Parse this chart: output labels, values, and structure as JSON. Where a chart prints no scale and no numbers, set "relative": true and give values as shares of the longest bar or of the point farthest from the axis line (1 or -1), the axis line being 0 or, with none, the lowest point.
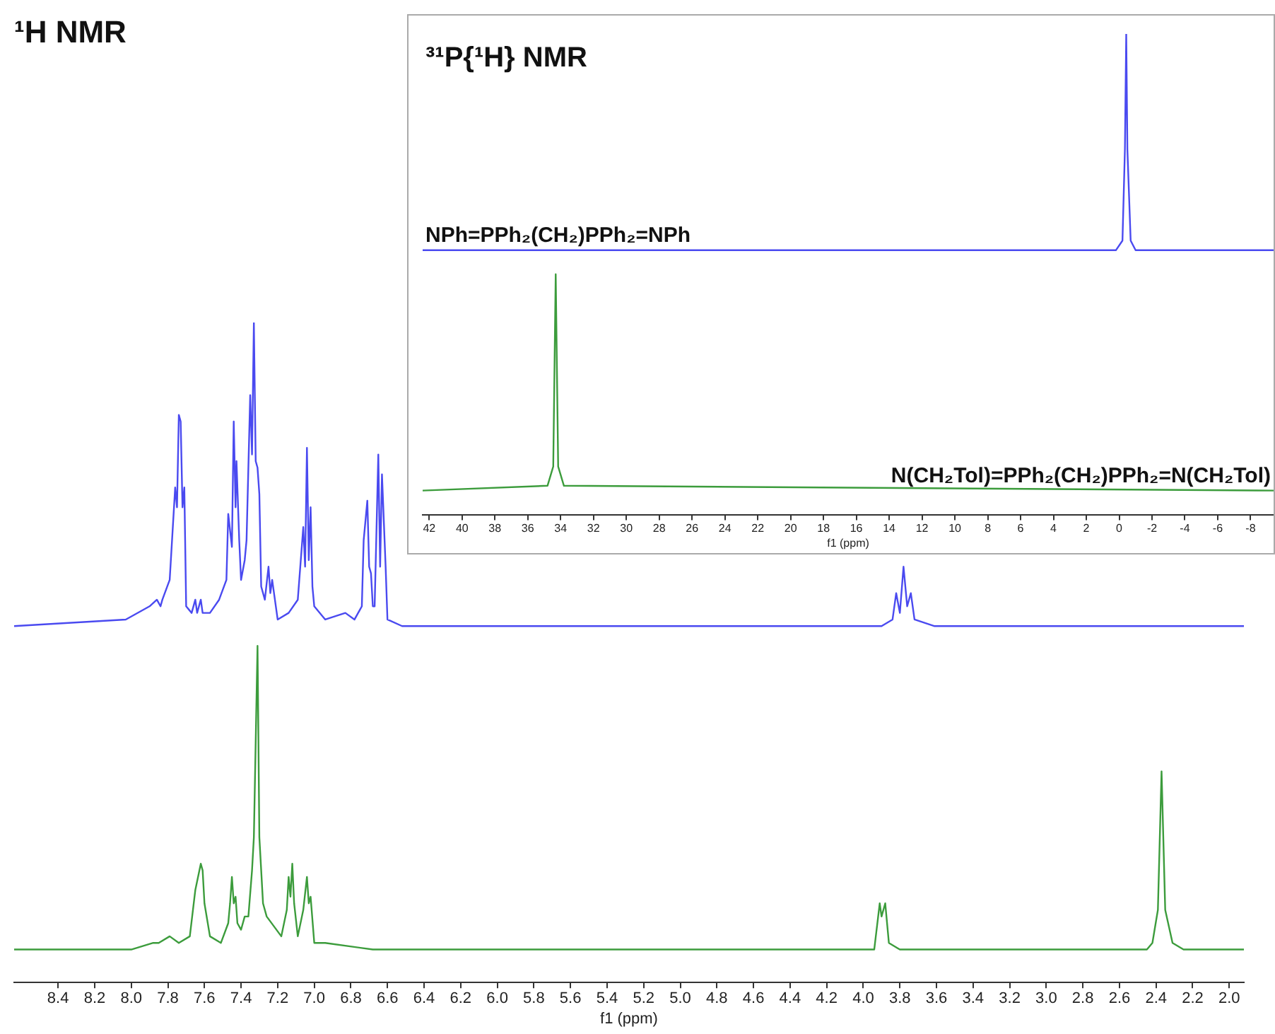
{
  "chart_data": [
    {
      "type": "line",
      "title": "¹H NMR",
      "xlabel": "f1 (ppm)",
      "relative": true,
      "legend": false,
      "grid": false,
      "marker": "none",
      "line_style": "solid",
      "xlim": [
        8.64,
        1.92
      ],
      "xticks": [
        8.4,
        8.2,
        {
          "value": 8,
          "label": "8.0"
        },
        7.8,
        7.6,
        7.4,
        7.2,
        {
          "value": 7,
          "label": "7.0"
        },
        6.8,
        6.6,
        6.4,
        6.2,
        {
          "value": 6,
          "label": "6.0"
        },
        5.8,
        5.6,
        5.4,
        5.2,
        {
          "value": 5,
          "label": "5.0"
        },
        4.8,
        4.6,
        4.4,
        4.2,
        {
          "value": 4,
          "label": "4.0"
        },
        3.8,
        3.6,
        3.4,
        3.2,
        {
          "value": 3,
          "label": "3.0"
        },
        2.8,
        2.6,
        2.4,
        2.2,
        {
          "value": 2,
          "label": "2.0"
        }
      ],
      "series": [
        {
          "color": "#4a4af0",
          "x": [
            8.64,
            8.03,
            7.9,
            7.86,
            7.84,
            7.83,
            7.79,
            7.76,
            7.75,
            7.74,
            7.73,
            7.72,
            7.71,
            7.7,
            7.67,
            7.65,
            7.64,
            7.62,
            7.61,
            7.57,
            7.52,
            7.48,
            7.47,
            7.45,
            7.44,
            7.43,
            7.425,
            7.41,
            7.4,
            7.38,
            7.37,
            7.35,
            7.34,
            7.33,
            7.32,
            7.31,
            7.3,
            7.29,
            7.27,
            7.25,
            7.24,
            7.23,
            7.2,
            7.14,
            7.09,
            7.06,
            7.05,
            7.04,
            7.03,
            7.02,
            7.01,
            7.0,
            6.94,
            6.83,
            6.78,
            6.74,
            6.73,
            6.71,
            6.7,
            6.69,
            6.68,
            6.67,
            6.65,
            6.64,
            6.63,
            6.61,
            6.6,
            6.52,
            3.9,
            3.84,
            3.82,
            3.8,
            3.78,
            3.76,
            3.74,
            3.72,
            3.61,
            1.92
          ],
          "values": [
            0.54,
            0.55,
            0.57,
            0.58,
            0.57,
            0.58,
            0.61,
            0.75,
            0.72,
            0.86,
            0.85,
            0.72,
            0.75,
            0.57,
            0.56,
            0.58,
            0.56,
            0.58,
            0.56,
            0.56,
            0.58,
            0.61,
            0.71,
            0.66,
            0.85,
            0.72,
            0.79,
            0.67,
            0.61,
            0.64,
            0.67,
            0.89,
            0.8,
            1.0,
            0.79,
            0.78,
            0.74,
            0.6,
            0.58,
            0.63,
            0.59,
            0.61,
            0.55,
            0.56,
            0.58,
            0.69,
            0.63,
            0.81,
            0.64,
            0.72,
            0.6,
            0.57,
            0.55,
            0.56,
            0.55,
            0.57,
            0.67,
            0.73,
            0.63,
            0.62,
            0.57,
            0.57,
            0.8,
            0.63,
            0.77,
            0.63,
            0.55,
            0.54,
            0.54,
            0.55,
            0.59,
            0.56,
            0.63,
            0.57,
            0.59,
            0.55,
            0.54,
            0.54
          ]
        },
        {
          "color": "#3c9c3c",
          "x": [
            8.64,
            8.0,
            7.88,
            7.85,
            7.79,
            7.74,
            7.68,
            7.65,
            7.62,
            7.61,
            7.6,
            7.57,
            7.51,
            7.47,
            7.46,
            7.45,
            7.44,
            7.43,
            7.42,
            7.4,
            7.38,
            7.36,
            7.34,
            7.33,
            7.31,
            7.3,
            7.28,
            7.26,
            7.18,
            7.15,
            7.14,
            7.13,
            7.12,
            7.11,
            7.09,
            7.06,
            7.04,
            7.03,
            7.02,
            7.0,
            6.94,
            6.68,
            3.94,
            3.91,
            3.9,
            3.88,
            3.86,
            3.8,
            2.45,
            2.42,
            2.39,
            2.37,
            2.35,
            2.31,
            2.25,
            1.92
          ],
          "values": [
            0.05,
            0.05,
            0.06,
            0.06,
            0.07,
            0.06,
            0.07,
            0.14,
            0.18,
            0.17,
            0.12,
            0.07,
            0.06,
            0.09,
            0.12,
            0.16,
            0.12,
            0.13,
            0.09,
            0.08,
            0.1,
            0.1,
            0.17,
            0.22,
            0.51,
            0.22,
            0.12,
            0.1,
            0.07,
            0.11,
            0.16,
            0.13,
            0.18,
            0.12,
            0.07,
            0.11,
            0.16,
            0.12,
            0.13,
            0.06,
            0.06,
            0.05,
            0.05,
            0.12,
            0.1,
            0.12,
            0.06,
            0.05,
            0.05,
            0.06,
            0.11,
            0.32,
            0.11,
            0.06,
            0.05,
            0.05
          ]
        }
      ]
    },
    {
      "type": "line",
      "title": "³¹P{¹H} NMR",
      "xlabel": "f1 (ppm)",
      "relative": true,
      "legend": false,
      "grid": false,
      "marker": "none",
      "line_style": "solid",
      "xlim": [
        42.4,
        -9.4
      ],
      "xticks": [
        42,
        40,
        38,
        36,
        34,
        32,
        30,
        28,
        26,
        24,
        22,
        20,
        18,
        16,
        14,
        12,
        10,
        8,
        6,
        4,
        2,
        0,
        -2,
        -4,
        -6,
        -8
      ],
      "series": [
        {
          "name": "NPh=PPh₂(CH₂)PPh₂=NPh",
          "color": "#4a4af0",
          "x": [
            42.4,
            0.2,
            -0.2,
            -0.35,
            -0.43,
            -0.5,
            -0.7,
            -1.0,
            -9.4
          ],
          "values": [
            0.55,
            0.55,
            0.57,
            0.76,
            1.0,
            0.76,
            0.57,
            0.55,
            0.55
          ]
        },
        {
          "name": "N(CH₂Tol)=PPh₂(CH₂)PPh₂=N(CH₂Tol)",
          "color": "#3c9c3c",
          "x": [
            42.4,
            34.8,
            34.45,
            34.3,
            34.15,
            33.8,
            -9.4
          ],
          "values": [
            0.05,
            0.06,
            0.1,
            0.5,
            0.1,
            0.06,
            0.05
          ]
        }
      ]
    }
  ]
}
